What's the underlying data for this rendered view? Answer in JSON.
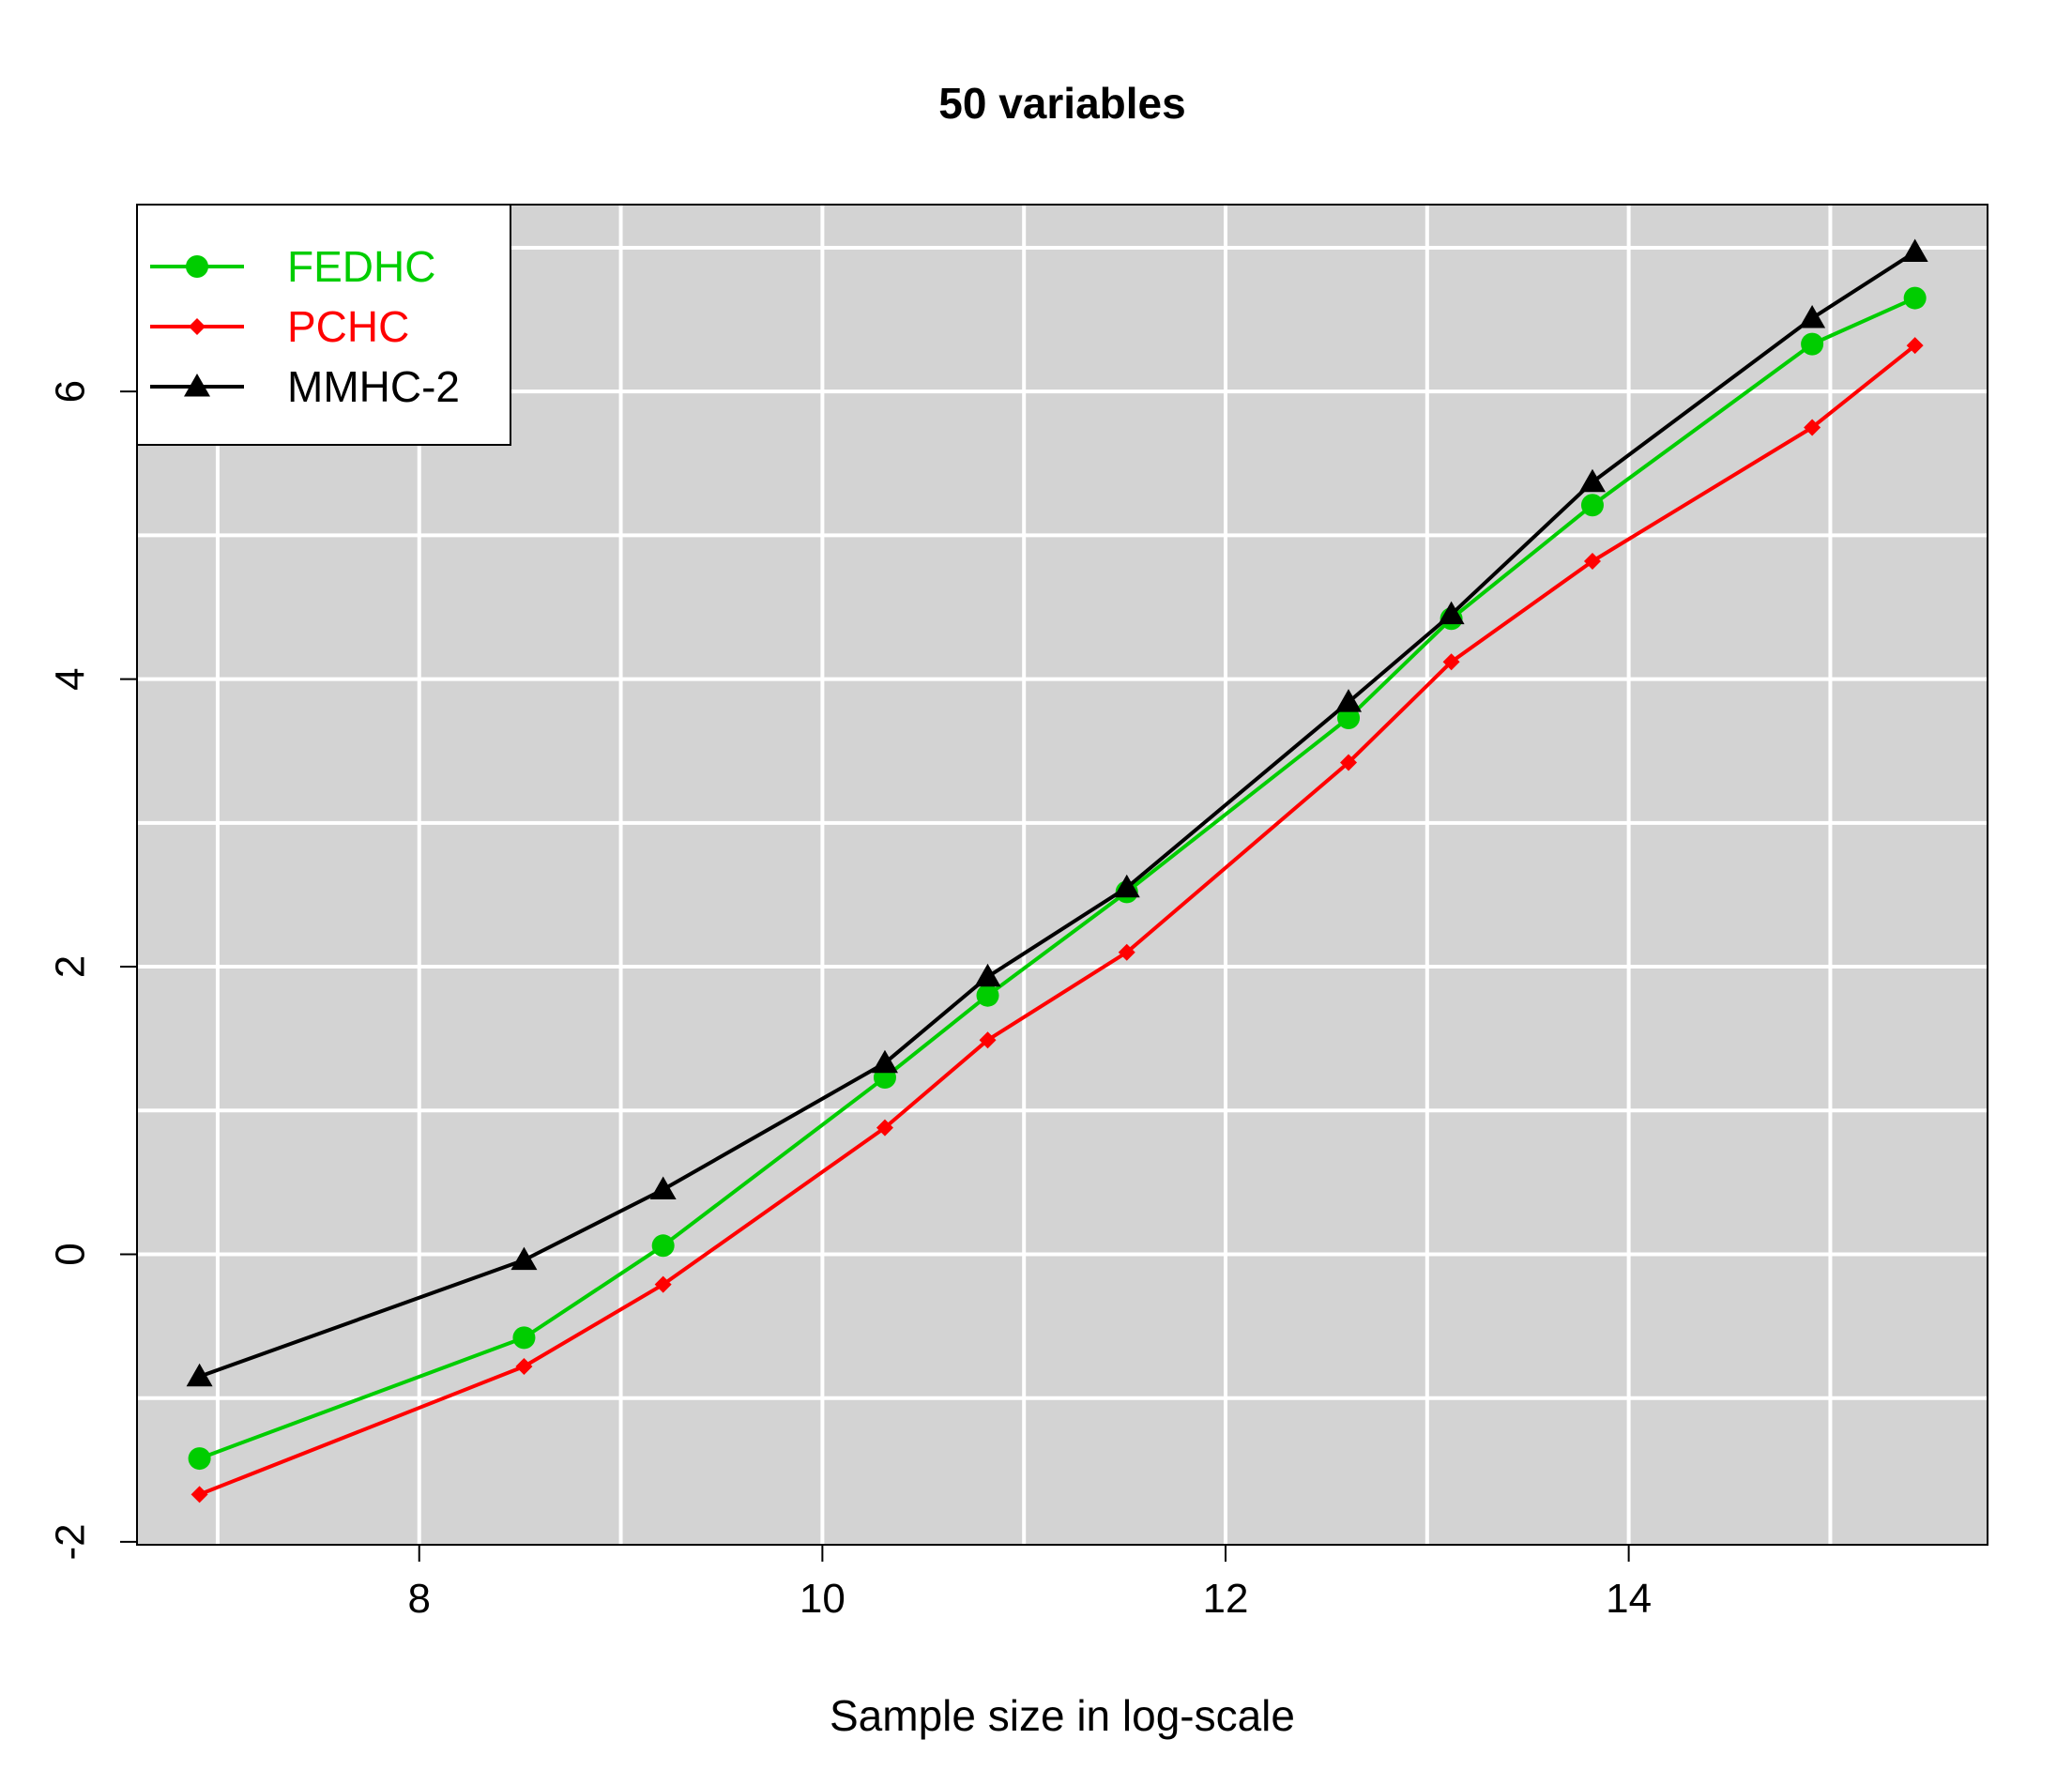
{
  "chart_data": {
    "type": "line",
    "title": "50 variables",
    "xlabel": "Sample size in log-scale",
    "ylabel": "",
    "xlim": [
      6.6,
      15.78
    ],
    "ylim": [
      -2.02,
      7.3
    ],
    "x_ticks": [
      8,
      10,
      12,
      14
    ],
    "y_ticks": [
      -2,
      0,
      2,
      4,
      6
    ],
    "x_tick_labels": [
      "8",
      "10",
      "12",
      "14"
    ],
    "y_tick_labels": [
      "-2",
      "0",
      "2",
      "4",
      "6"
    ],
    "grid": true,
    "grid_x": [
      7,
      8,
      9,
      10,
      11,
      12,
      13,
      14,
      15
    ],
    "grid_y": [
      -1,
      0,
      1,
      2,
      3,
      4,
      5,
      6,
      7
    ],
    "background": "#d3d3d3",
    "legend_position": "top-left",
    "x": [
      6.91,
      8.52,
      9.21,
      10.31,
      10.82,
      11.51,
      12.61,
      13.12,
      13.82,
      14.91,
      15.42
    ],
    "series": [
      {
        "name": "FEDHC",
        "color": "#00cd00",
        "marker": "circle",
        "values": [
          -1.42,
          -0.58,
          0.06,
          1.23,
          1.8,
          2.52,
          3.73,
          4.42,
          5.21,
          6.33,
          6.65
        ]
      },
      {
        "name": "PCHC",
        "color": "#ff0000",
        "marker": "diamond",
        "values": [
          -1.67,
          -0.78,
          -0.21,
          0.88,
          1.49,
          2.1,
          3.42,
          4.12,
          4.82,
          5.75,
          6.32
        ]
      },
      {
        "name": "MMHC-2",
        "color": "#000000",
        "marker": "triangle",
        "values": [
          -0.85,
          -0.04,
          0.45,
          1.33,
          1.93,
          2.55,
          3.84,
          4.45,
          5.37,
          6.51,
          6.97
        ]
      }
    ]
  }
}
